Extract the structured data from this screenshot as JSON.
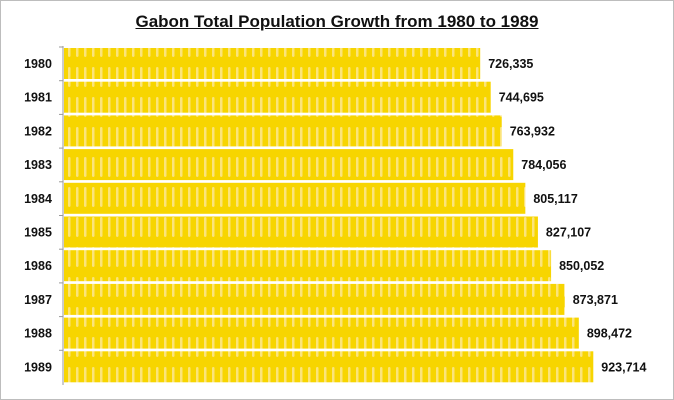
{
  "chart_data": {
    "type": "bar",
    "orientation": "horizontal",
    "title": "Gabon Total Population Growth from 1980 to 1989",
    "categories": [
      "1980",
      "1981",
      "1982",
      "1983",
      "1984",
      "1985",
      "1986",
      "1987",
      "1988",
      "1989"
    ],
    "values": [
      726335,
      744695,
      763932,
      784056,
      805117,
      827107,
      850052,
      873871,
      898472,
      923714
    ],
    "value_labels": [
      "726,335",
      "744,695",
      "763,932",
      "784,056",
      "805,117",
      "827,107",
      "850,052",
      "873,871",
      "898,472",
      "923,714"
    ],
    "xlim": [
      0,
      1000000
    ],
    "grid": false,
    "colors": {
      "bar": "#f7d500",
      "stripe": "#fbe36a",
      "text": "#111111"
    }
  }
}
